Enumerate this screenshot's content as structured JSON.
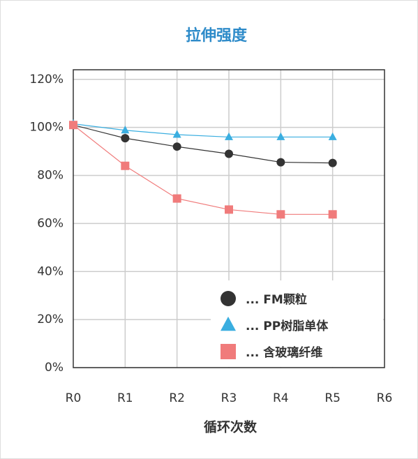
{
  "chart_data": {
    "type": "line",
    "title": "拉伸强度",
    "x_label": "循环次数",
    "categories": [
      "R0",
      "R1",
      "R2",
      "R3",
      "R4",
      "R5",
      "R6"
    ],
    "series": [
      {
        "name": "... FM颗粒",
        "color": "#333333",
        "marker": "circle",
        "values": [
          101,
          95.5,
          92,
          89,
          85.5,
          85.2,
          null
        ]
      },
      {
        "name": "... PP树脂单体",
        "color": "#3aaee0",
        "marker": "triangle",
        "values": [
          101.5,
          98.8,
          97,
          96,
          96,
          96,
          null
        ]
      },
      {
        "name": "... 含玻璃纤维",
        "color": "#f07b7b",
        "marker": "square",
        "values": [
          101,
          84,
          70.4,
          65.8,
          63.8,
          63.8,
          null
        ]
      }
    ],
    "ylim": [
      0,
      124
    ],
    "yticks": [
      {
        "value": 0,
        "label": "0%"
      },
      {
        "value": 20,
        "label": "20%"
      },
      {
        "value": 40,
        "label": "40%"
      },
      {
        "value": 60,
        "label": "60%"
      },
      {
        "value": 80,
        "label": "80%"
      },
      {
        "value": 100,
        "label": "100%"
      },
      {
        "value": 120,
        "label": "120%"
      }
    ],
    "grid": true,
    "legend": "lower right"
  }
}
